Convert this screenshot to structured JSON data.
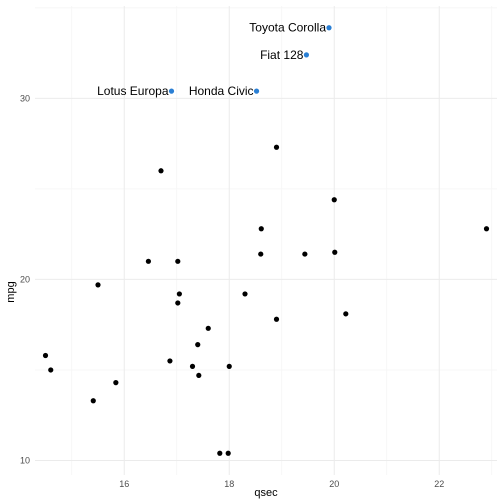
{
  "chart_data": {
    "type": "scatter",
    "xlabel": "qsec",
    "ylabel": "mpg",
    "xlim": [
      14.3,
      23.1
    ],
    "ylim": [
      9.2,
      35.1
    ],
    "x_major_ticks": [
      16,
      18,
      20,
      22
    ],
    "x_minor_ticks": [
      15,
      17,
      19,
      21,
      23
    ],
    "y_major_ticks": [
      10,
      20,
      30
    ],
    "y_minor_ticks": [
      15,
      25,
      35
    ],
    "grid": true,
    "highlight_color": "#2a7fd4",
    "point_color": "#000000",
    "highlighted": [
      {
        "label": "Toyota Corolla",
        "x": 19.9,
        "y": 33.9
      },
      {
        "label": "Fiat 128",
        "x": 19.47,
        "y": 32.4
      },
      {
        "label": "Lotus Europa",
        "x": 16.9,
        "y": 30.4
      },
      {
        "label": "Honda Civic",
        "x": 18.52,
        "y": 30.4
      }
    ],
    "points": [
      {
        "x": 16.46,
        "y": 21.0
      },
      {
        "x": 17.02,
        "y": 21.0
      },
      {
        "x": 18.61,
        "y": 22.8
      },
      {
        "x": 19.44,
        "y": 21.4
      },
      {
        "x": 17.02,
        "y": 18.7
      },
      {
        "x": 20.22,
        "y": 18.1
      },
      {
        "x": 15.84,
        "y": 14.3
      },
      {
        "x": 20.0,
        "y": 24.4
      },
      {
        "x": 22.9,
        "y": 22.8
      },
      {
        "x": 18.3,
        "y": 19.2
      },
      {
        "x": 18.9,
        "y": 17.8
      },
      {
        "x": 17.4,
        "y": 16.4
      },
      {
        "x": 17.6,
        "y": 17.3
      },
      {
        "x": 18.0,
        "y": 15.2
      },
      {
        "x": 17.98,
        "y": 10.4
      },
      {
        "x": 17.82,
        "y": 10.4
      },
      {
        "x": 17.42,
        "y": 14.7
      },
      {
        "x": 20.01,
        "y": 21.5
      },
      {
        "x": 16.87,
        "y": 15.5
      },
      {
        "x": 17.3,
        "y": 15.2
      },
      {
        "x": 15.41,
        "y": 13.3
      },
      {
        "x": 17.05,
        "y": 19.2
      },
      {
        "x": 18.9,
        "y": 27.3
      },
      {
        "x": 16.7,
        "y": 26.0
      },
      {
        "x": 14.5,
        "y": 15.8
      },
      {
        "x": 15.5,
        "y": 19.7
      },
      {
        "x": 14.6,
        "y": 15.0
      },
      {
        "x": 18.6,
        "y": 21.4
      }
    ]
  }
}
